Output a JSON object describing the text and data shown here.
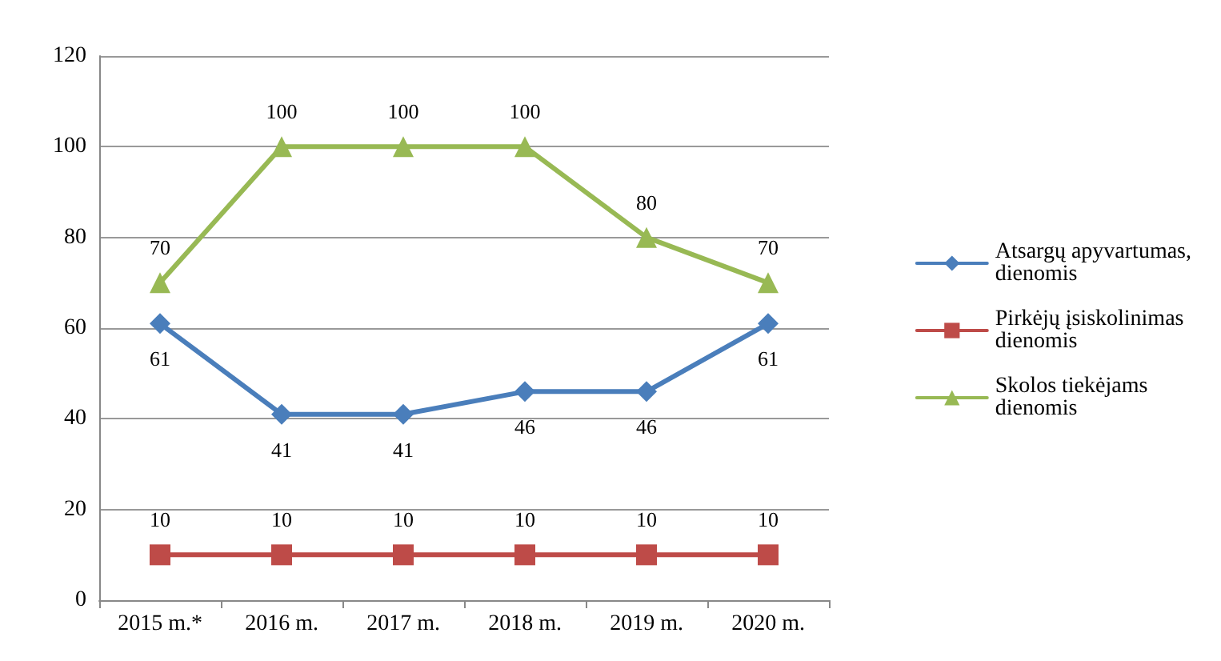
{
  "chart_data": {
    "type": "line",
    "categories": [
      "2015 m.*",
      "2016 m.",
      "2017 m.",
      "2018 m.",
      "2019 m.",
      "2020 m."
    ],
    "series": [
      {
        "name": "Atsargų apyvartumas, dienomis",
        "color": "#4a7ebb",
        "marker": "diamond",
        "values": [
          61,
          41,
          41,
          46,
          46,
          61
        ]
      },
      {
        "name": "Pirkėjų įsiskolinimas dienomis",
        "color": "#be4b48",
        "marker": "square",
        "values": [
          10,
          10,
          10,
          10,
          10,
          10
        ]
      },
      {
        "name": "Skolos tiekėjams dienomis",
        "color": "#98b954",
        "marker": "triangle",
        "values": [
          70,
          100,
          100,
          100,
          80,
          70
        ]
      }
    ],
    "ylim": [
      0,
      120
    ],
    "yticks": [
      0,
      20,
      40,
      60,
      80,
      100,
      120
    ],
    "grid": "y",
    "legend": "right",
    "data_labels": true,
    "line_style": "solid"
  }
}
